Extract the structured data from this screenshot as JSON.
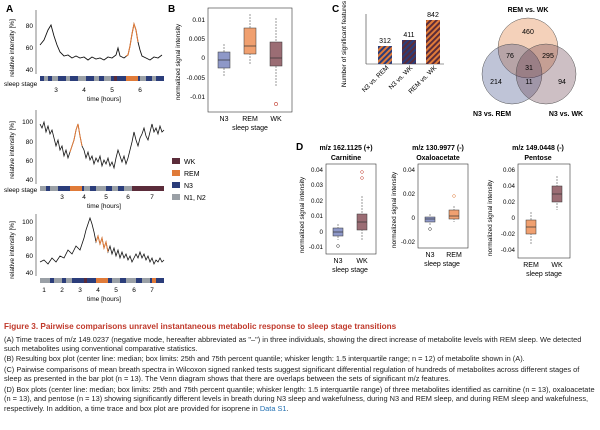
{
  "colors": {
    "WK": "#5b2c3a",
    "REM": "#e07b39",
    "N3": "#2b3d7a",
    "N12": "#9aa0a6",
    "remBox": "#f0a070",
    "wkBox": "#9b6d74",
    "n3Box": "#8e98c8",
    "caption": "#c0392b",
    "link": "#1f6fb2"
  },
  "panelA": {
    "label": "A",
    "ylabel": "relative intensity [%]",
    "xlabel": "time [hours]",
    "sleepStage": "sleep stage",
    "traces": [
      {
        "yticks": [
          "40",
          "60",
          "80"
        ],
        "xticks": [
          "3",
          "4",
          "5",
          "6"
        ]
      },
      {
        "yticks": [
          "40",
          "60",
          "80",
          "100"
        ],
        "xticks": [
          "3",
          "4",
          "5",
          "6",
          "7"
        ]
      },
      {
        "yticks": [
          "40",
          "60",
          "80",
          "100"
        ],
        "xticks": [
          "1",
          "2",
          "3",
          "4",
          "5",
          "6",
          "7"
        ]
      }
    ]
  },
  "legend": {
    "items": [
      {
        "key": "WK",
        "label": "WK"
      },
      {
        "key": "REM",
        "label": "REM"
      },
      {
        "key": "N3",
        "label": "N3"
      },
      {
        "key": "N12",
        "label": "N1, N2"
      }
    ]
  },
  "panelB": {
    "label": "B",
    "ylabel": "normalized signal intensity",
    "xlabel": "sleep stage",
    "yticks": [
      "0.01",
      "0.005",
      "0",
      "-0.005",
      "-0.01"
    ],
    "categories": [
      "N3",
      "REM",
      "WK"
    ]
  },
  "panelC": {
    "label": "C",
    "ylabel": "Number of significant features",
    "bars": [
      {
        "label": "N3 vs. REM",
        "value": "312"
      },
      {
        "label": "N3 vs. WK",
        "value": "411"
      },
      {
        "label": "REM vs. WK",
        "value": "842"
      }
    ],
    "venn": {
      "topTitle": "REM vs. WK",
      "leftTitle": "N3 vs. REM",
      "rightTitle": "N3 vs. WK",
      "values": [
        "460",
        "76",
        "295",
        "31",
        "214",
        "11",
        "94"
      ]
    }
  },
  "panelD": {
    "label": "D",
    "ylabel": "normalized signal intensity",
    "xlabel": "sleep stage",
    "plots": [
      {
        "title1": "m/z 162.1125 (+)",
        "title2": "Carnitine",
        "yticks": [
          "0.04",
          "0.03",
          "0.02",
          "0.01",
          "0",
          "-0.01"
        ],
        "categories": [
          "N3",
          "WK"
        ]
      },
      {
        "title1": "m/z 130.9977 (-)",
        "title2": "Oxaloacetate",
        "yticks": [
          "0.04",
          "0.02",
          "0",
          "-0.02"
        ],
        "categories": [
          "N3",
          "REM"
        ]
      },
      {
        "title1": "m/z 149.0448 (-)",
        "title2": "Pentose",
        "yticks": [
          "0.06",
          "0.04",
          "0.02",
          "0",
          "-0.02",
          "-0.04"
        ],
        "categories": [
          "REM",
          "WK"
        ]
      }
    ]
  },
  "caption": {
    "title": "Figure 3. Pairwise comparisons unravel instantaneous metabolic response to sleep stage transitions",
    "paraA": "(A) Time traces of m/z 149.0237 (negative mode, hereafter abbreviated as \"–\") in three individuals, showing the direct increase of metabolite levels with REM sleep. We detected such metabolites using conventional comparative statistics.",
    "paraB": "(B) Resulting box plot (center line: median; box limits: 25th and 75th percent quantile; whisker length: 1.5 interquartile range; n = 12) of metabolite shown in (A).",
    "paraC": "(C) Pairwise comparisons of mean breath spectra in Wilcoxon signed ranked tests suggest significant differential regulation of hundreds of metabolites across different stages of sleep as presented in the bar plot (n = 13). The Venn diagram shows that there are overlaps between the sets of significant m/z features.",
    "paraD": "(D) Box plots (center line: median; box limits: 25th and 75th percent quantile; whisker length: 1.5 interquartile range) of three metabolites identified as carnitine (n = 13), oxaloacetate (n = 13), and pentose (n = 13) showing significantly different levels in breath during N3 sleep and wakefulness, during N3 and REM sleep, and during REM sleep and wakefulness, respectively. In addition, a time trace and box plot are provided for isoprene in",
    "linkText": "Data S1",
    "end": "."
  }
}
